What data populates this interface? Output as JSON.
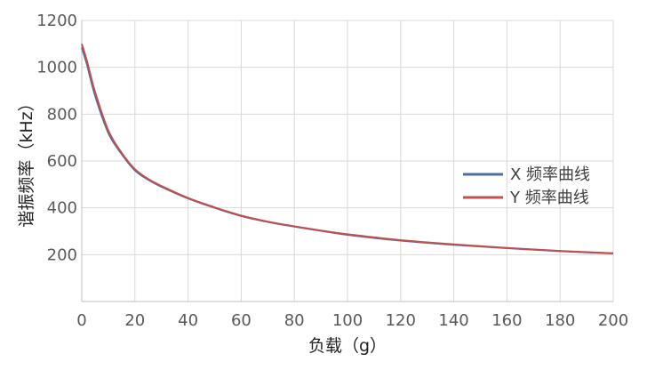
{
  "chart_data": {
    "type": "line",
    "xlabel": "负载（g）",
    "ylabel": "谐振频率（kHz）",
    "xlim": [
      0,
      200
    ],
    "ylim": [
      0,
      1200
    ],
    "x_ticks": [
      0,
      20,
      40,
      60,
      80,
      100,
      120,
      140,
      160,
      180,
      200
    ],
    "y_ticks": [
      200,
      400,
      600,
      800,
      1000,
      1200
    ],
    "grid": true,
    "legend_position": "right",
    "x": [
      0,
      2,
      5,
      10,
      15,
      20,
      25,
      30,
      40,
      50,
      60,
      70,
      80,
      90,
      100,
      120,
      140,
      160,
      180,
      200
    ],
    "series": [
      {
        "name": "X 频率曲线",
        "color": "#4a6fa0",
        "values": [
          1085,
          1010,
          880,
          720,
          630,
          560,
          520,
          490,
          440,
          400,
          365,
          340,
          320,
          302,
          285,
          260,
          242,
          228,
          215,
          205
        ]
      },
      {
        "name": "Y 频率曲线",
        "color": "#c0504d",
        "values": [
          1100,
          1025,
          895,
          730,
          635,
          565,
          523,
          493,
          442,
          402,
          367,
          341,
          321,
          303,
          287,
          262,
          244,
          229,
          216,
          206
        ]
      }
    ]
  }
}
